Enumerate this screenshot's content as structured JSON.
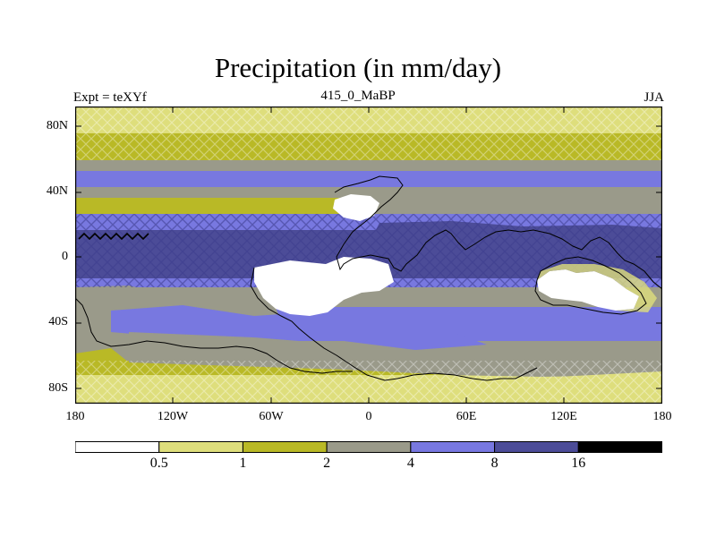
{
  "title": "Precipitation (in mm/day)",
  "left_label": "Expt = teXYf",
  "center_label": "415_0_MaBP",
  "right_label": "JJA",
  "y_ticks": [
    "80N",
    "40N",
    "0",
    "40S",
    "80S"
  ],
  "x_ticks": [
    "180",
    "120W",
    "60W",
    "0",
    "60E",
    "120E",
    "180"
  ],
  "colorbar": {
    "labels": [
      "0.5",
      "1",
      "2",
      "4",
      "8",
      "16"
    ],
    "colors": [
      "#ffffff",
      "#dede7c",
      "#b9b926",
      "#9a9a8a",
      "#7878e0",
      "#4c4c98",
      "#000000"
    ]
  }
}
